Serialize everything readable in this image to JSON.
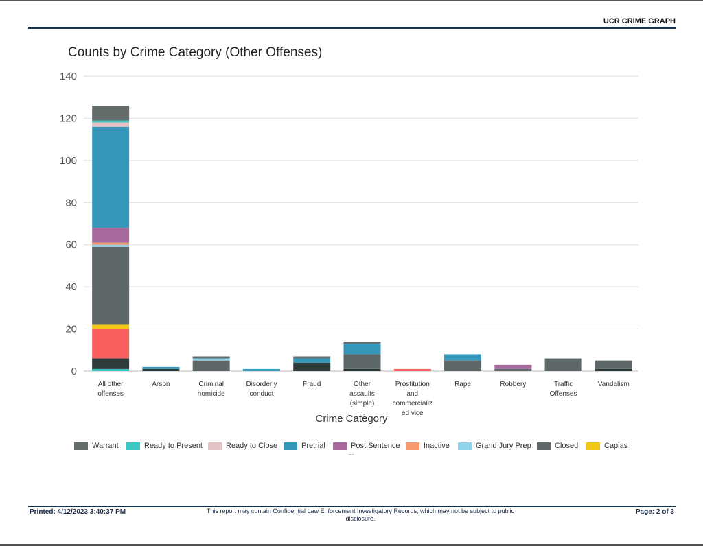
{
  "header": {
    "report_title": "UCR CRIME GRAPH"
  },
  "footer": {
    "printed": "Printed: 4/12/2023 3:40:37 PM",
    "disclaimer": "This report may contain Confidential Law Enforcement Investigatory Records, which may not be subject to public disclosure.",
    "page": "Page: 2 of 3"
  },
  "legend_more": "...",
  "colors": {
    "Warrant": "#636b6b",
    "Ready to Present": "#3cc8c2",
    "Ready to Close": "#e3c3c6",
    "Pretrial": "#3598ba",
    "Post Sentence": "#a86a9c",
    "Inactive": "#f79a6e",
    "Grand Jury Prep": "#8ed3ea",
    "Closed": "#5f6868",
    "Capias": "#f2c618",
    "Dark": "#2e3b3b",
    "Red": "#f7605e"
  },
  "chart_data": {
    "type": "bar",
    "stacked": true,
    "title": "Counts by Crime Category (Other Offenses)",
    "xlabel": "Crime Category",
    "ylabel": "",
    "ylim": [
      0,
      140
    ],
    "yticks": [
      "0",
      "20",
      "40",
      "60",
      "80",
      "100",
      "120",
      "140"
    ],
    "grid": true,
    "legend_position": "bottom",
    "categories": [
      [
        "All other",
        "offenses"
      ],
      [
        "Arson"
      ],
      [
        "Criminal",
        "homicide"
      ],
      [
        "Disorderly",
        "conduct"
      ],
      [
        "Fraud"
      ],
      [
        "Other",
        "assaults",
        "(simple)",
        "..."
      ],
      [
        "Prostitution",
        "and",
        "commercializ",
        "ed vice"
      ],
      [
        "Rape"
      ],
      [
        "Robbery"
      ],
      [
        "Traffic",
        "Offenses"
      ],
      [
        "Vandalism"
      ]
    ],
    "legend": [
      "Warrant",
      "Ready to Present",
      "Ready to Close",
      "Pretrial",
      "Post Sentence",
      "Inactive",
      "Grand Jury Prep",
      "Closed",
      "Capias"
    ],
    "stacks": [
      [
        {
          "c": "Ready to Present",
          "v": 1
        },
        {
          "c": "Dark",
          "v": 5
        },
        {
          "c": "Red",
          "v": 14
        },
        {
          "c": "Capias",
          "v": 2
        },
        {
          "c": "Closed",
          "v": 37
        },
        {
          "c": "Grand Jury Prep",
          "v": 1
        },
        {
          "c": "Inactive",
          "v": 1
        },
        {
          "c": "Post Sentence",
          "v": 7
        },
        {
          "c": "Pretrial",
          "v": 48
        },
        {
          "c": "Ready to Close",
          "v": 2
        },
        {
          "c": "Ready to Present",
          "v": 1
        },
        {
          "c": "Warrant",
          "v": 7
        }
      ],
      [
        {
          "c": "Dark",
          "v": 1
        },
        {
          "c": "Pretrial",
          "v": 1
        }
      ],
      [
        {
          "c": "Closed",
          "v": 5
        },
        {
          "c": "Grand Jury Prep",
          "v": 1
        },
        {
          "c": "Warrant",
          "v": 1
        }
      ],
      [
        {
          "c": "Pretrial",
          "v": 1
        }
      ],
      [
        {
          "c": "Dark",
          "v": 4
        },
        {
          "c": "Pretrial",
          "v": 2
        },
        {
          "c": "Warrant",
          "v": 1
        }
      ],
      [
        {
          "c": "Dark",
          "v": 1
        },
        {
          "c": "Closed",
          "v": 7
        },
        {
          "c": "Pretrial",
          "v": 5
        },
        {
          "c": "Warrant",
          "v": 1
        }
      ],
      [
        {
          "c": "Red",
          "v": 1
        }
      ],
      [
        {
          "c": "Closed",
          "v": 5
        },
        {
          "c": "Pretrial",
          "v": 3
        }
      ],
      [
        {
          "c": "Closed",
          "v": 1
        },
        {
          "c": "Post Sentence",
          "v": 2
        }
      ],
      [
        {
          "c": "Closed",
          "v": 6
        }
      ],
      [
        {
          "c": "Dark",
          "v": 1
        },
        {
          "c": "Closed",
          "v": 4
        }
      ]
    ]
  }
}
